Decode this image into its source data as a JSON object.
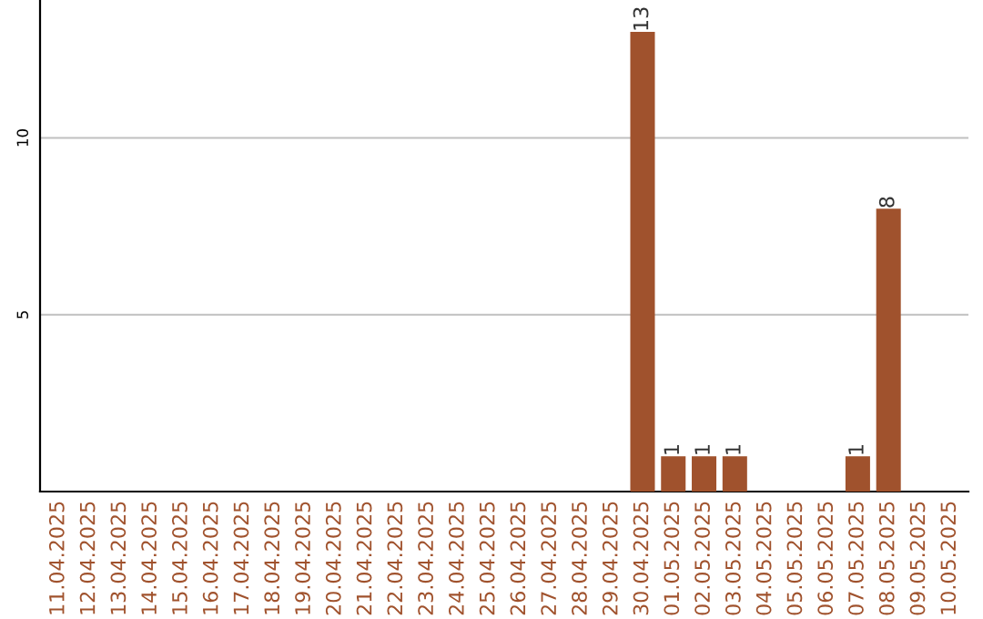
{
  "chart_data": {
    "type": "bar",
    "categories": [
      "11.04.2025",
      "12.04.2025",
      "13.04.2025",
      "14.04.2025",
      "15.04.2025",
      "16.04.2025",
      "17.04.2025",
      "18.04.2025",
      "19.04.2025",
      "20.04.2025",
      "21.04.2025",
      "22.04.2025",
      "23.04.2025",
      "24.04.2025",
      "25.04.2025",
      "26.04.2025",
      "27.04.2025",
      "28.04.2025",
      "29.04.2025",
      "30.04.2025",
      "01.05.2025",
      "02.05.2025",
      "03.05.2025",
      "04.05.2025",
      "05.05.2025",
      "06.05.2025",
      "07.05.2025",
      "08.05.2025",
      "09.05.2025",
      "10.05.2025"
    ],
    "values": [
      0,
      0,
      0,
      0,
      0,
      0,
      0,
      0,
      0,
      0,
      0,
      0,
      0,
      0,
      0,
      0,
      0,
      0,
      0,
      13,
      1,
      1,
      1,
      0,
      0,
      0,
      1,
      8,
      0,
      0
    ],
    "value_labels": [
      null,
      null,
      null,
      null,
      null,
      null,
      null,
      null,
      null,
      null,
      null,
      null,
      null,
      null,
      null,
      null,
      null,
      null,
      null,
      "13",
      "1",
      "1",
      "1",
      null,
      null,
      null,
      "1",
      "8",
      null,
      null
    ],
    "color": "#a0522d",
    "ylim": [
      0,
      13.9
    ],
    "yticks": [
      5,
      10
    ],
    "grid": "y"
  }
}
